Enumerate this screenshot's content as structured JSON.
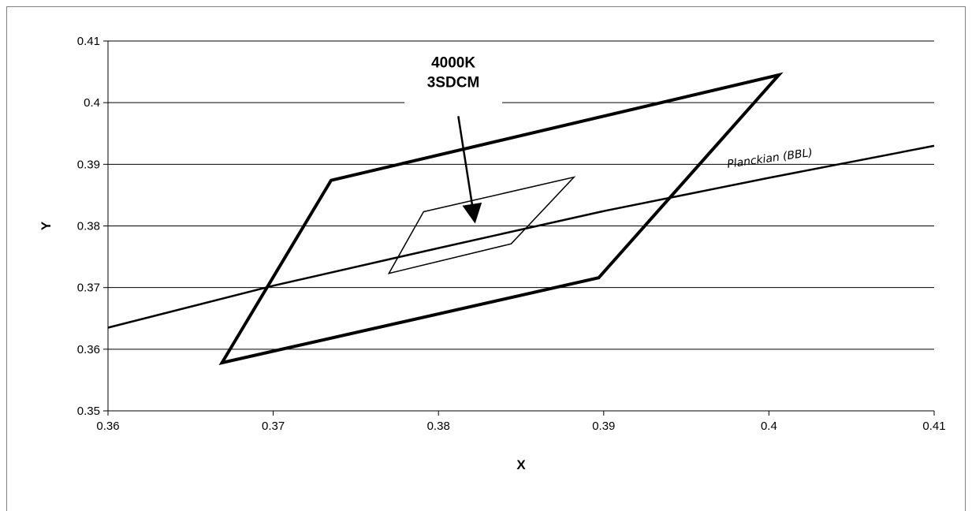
{
  "chart_data": {
    "type": "line",
    "xlabel": "X",
    "ylabel": "Y",
    "xlim": [
      0.36,
      0.41
    ],
    "ylim": [
      0.35,
      0.41
    ],
    "x_ticks": [
      "0.36",
      "0.37",
      "0.38",
      "0.39",
      "0.4",
      "0.41"
    ],
    "y_ticks": [
      "0.35",
      "0.36",
      "0.37",
      "0.38",
      "0.39",
      "0.4",
      "0.41"
    ],
    "grid": "horizontal",
    "legend": "none",
    "series": [
      {
        "name": "Planckian (BBL)",
        "closed": false,
        "color": "#000000",
        "points": [
          [
            0.36,
            0.3635
          ],
          [
            0.37,
            0.3703
          ],
          [
            0.38,
            0.3764
          ],
          [
            0.39,
            0.3824
          ],
          [
            0.4,
            0.3878
          ],
          [
            0.41,
            0.393
          ]
        ]
      },
      {
        "closed": true,
        "color": "#000000",
        "points": [
          [
            0.3735,
            0.3874
          ],
          [
            0.4006,
            0.4045
          ],
          [
            0.3897,
            0.3716
          ],
          [
            0.3669,
            0.3578
          ]
        ]
      },
      {
        "closed": true,
        "color": "#000000",
        "points": [
          [
            0.3791,
            0.3823
          ],
          [
            0.3882,
            0.3879
          ],
          [
            0.3844,
            0.3771
          ],
          [
            0.377,
            0.3723
          ]
        ]
      }
    ],
    "annotations": [
      {
        "text_lines": [
          "4000K",
          "3SDCM"
        ],
        "arrow_to": [
          0.3822,
          0.3807
        ]
      }
    ]
  }
}
